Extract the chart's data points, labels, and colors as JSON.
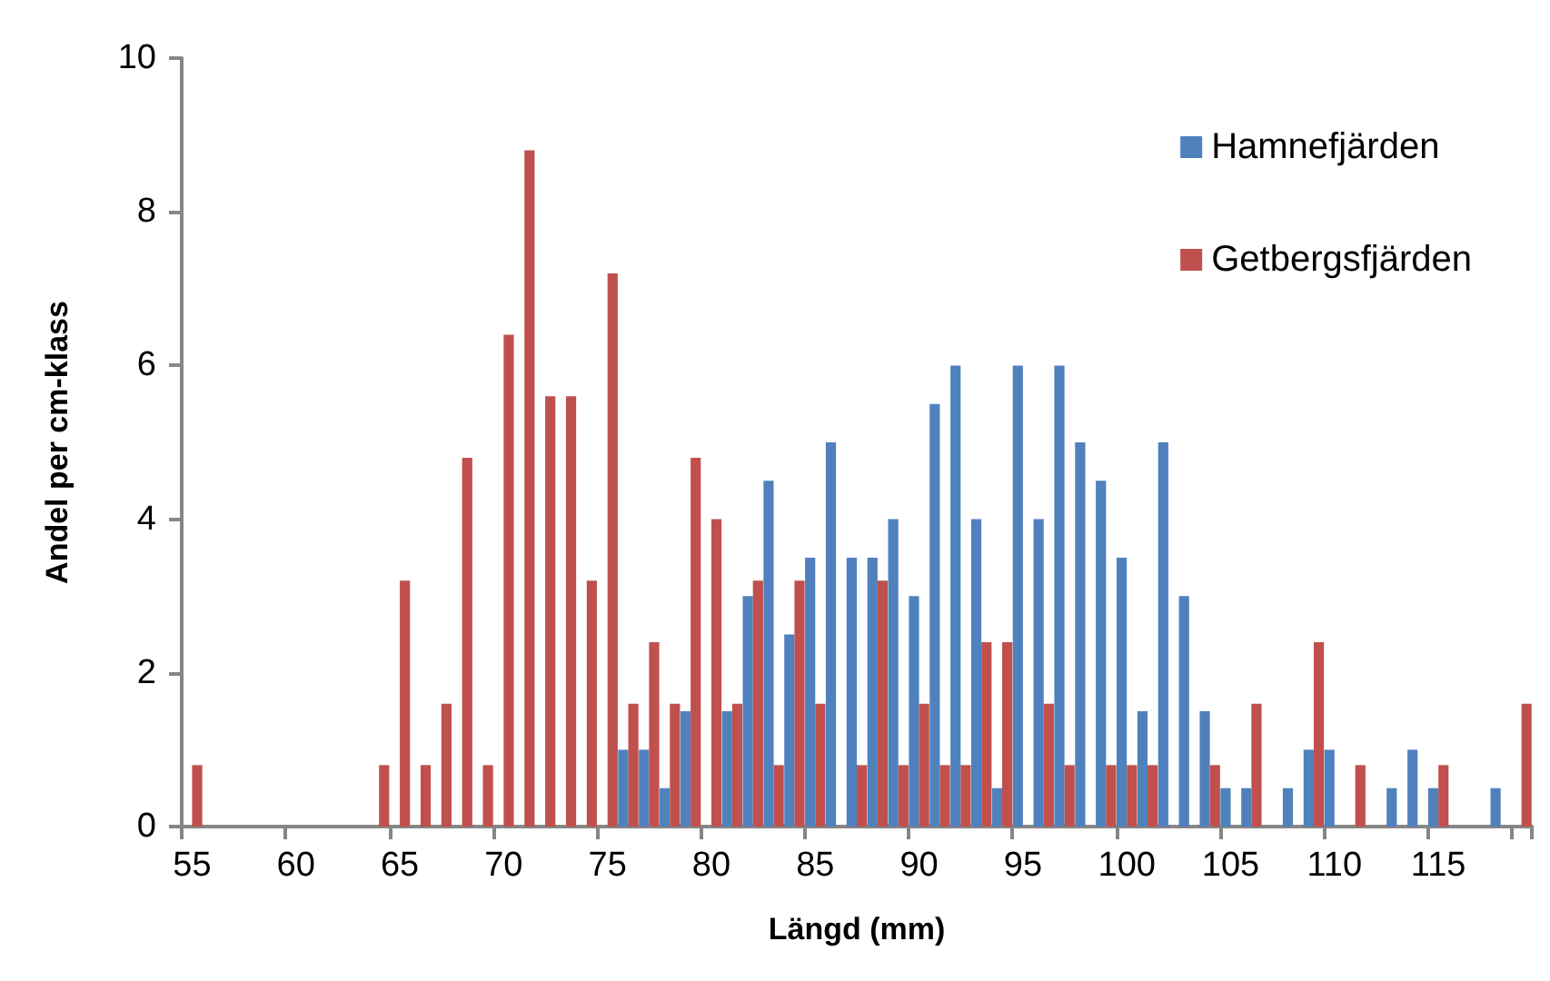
{
  "chart_data": {
    "type": "bar",
    "xlabel": "Längd (mm)",
    "ylabel": "Andel per cm-klass",
    "categories": [
      "55",
      null,
      null,
      null,
      null,
      "60",
      null,
      null,
      null,
      null,
      "65",
      null,
      null,
      null,
      null,
      "70",
      null,
      null,
      null,
      null,
      "75",
      null,
      null,
      null,
      null,
      "80",
      null,
      null,
      null,
      null,
      "85",
      null,
      null,
      null,
      null,
      "90",
      null,
      null,
      null,
      null,
      "95",
      null,
      null,
      null,
      null,
      "100",
      null,
      null,
      null,
      null,
      "105",
      null,
      null,
      null,
      null,
      "110",
      null,
      null,
      null,
      null,
      "115",
      null,
      null,
      null,
      null
    ],
    "series": [
      {
        "name": "Hamnefjärden",
        "color": "#4f81bd",
        "values": [
          0,
          0,
          0,
          0,
          0,
          0,
          0,
          0,
          0,
          0,
          0,
          0,
          0,
          0,
          0,
          0,
          0,
          0,
          0,
          0,
          0,
          1.0,
          1.0,
          0.5,
          1.5,
          0,
          1.5,
          3.0,
          4.5,
          2.5,
          3.5,
          5.0,
          3.5,
          3.5,
          4.0,
          3.0,
          5.5,
          6.0,
          4.0,
          0.5,
          6.0,
          4.0,
          6.0,
          5.0,
          4.5,
          3.5,
          1.5,
          5.0,
          3.0,
          1.5,
          0.5,
          0.5,
          0,
          0.5,
          1.0,
          1.0,
          0,
          0,
          0.5,
          1.0,
          0.5,
          0,
          0,
          0.5,
          0
        ]
      },
      {
        "name": "Getbergsfjärden",
        "color": "#c0504d",
        "values": [
          0.8,
          0,
          0,
          0,
          0,
          0,
          0,
          0,
          0,
          0.8,
          3.2,
          0.8,
          1.6,
          4.8,
          0.8,
          6.4,
          8.8,
          5.6,
          5.6,
          3.2,
          7.2,
          1.6,
          2.4,
          1.6,
          4.8,
          4.0,
          1.6,
          3.2,
          0.8,
          3.2,
          1.6,
          0,
          0.8,
          3.2,
          0.8,
          1.6,
          0.8,
          0.8,
          2.4,
          2.4,
          0,
          1.6,
          0.8,
          0,
          0.8,
          0.8,
          0.8,
          0,
          0,
          0.8,
          0,
          1.6,
          0,
          0,
          2.4,
          0,
          0.8,
          0,
          0,
          0,
          0.8,
          0,
          0,
          0,
          1.6
        ]
      }
    ],
    "ylim": [
      0,
      10
    ],
    "yticks": [
      0,
      2,
      4,
      6,
      8,
      10
    ],
    "grid": false,
    "legend": "top right"
  }
}
